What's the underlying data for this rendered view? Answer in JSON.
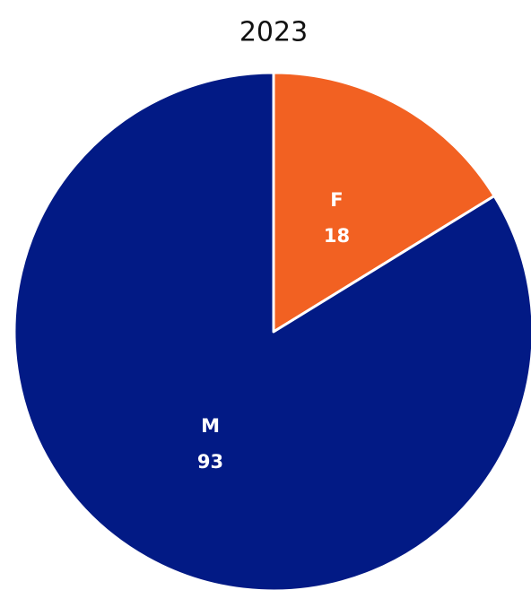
{
  "chart_data": {
    "type": "pie",
    "title": "2023",
    "categories": [
      "F",
      "M"
    ],
    "values": [
      18,
      93
    ],
    "colors": [
      "#f26122",
      "#021a85"
    ]
  }
}
